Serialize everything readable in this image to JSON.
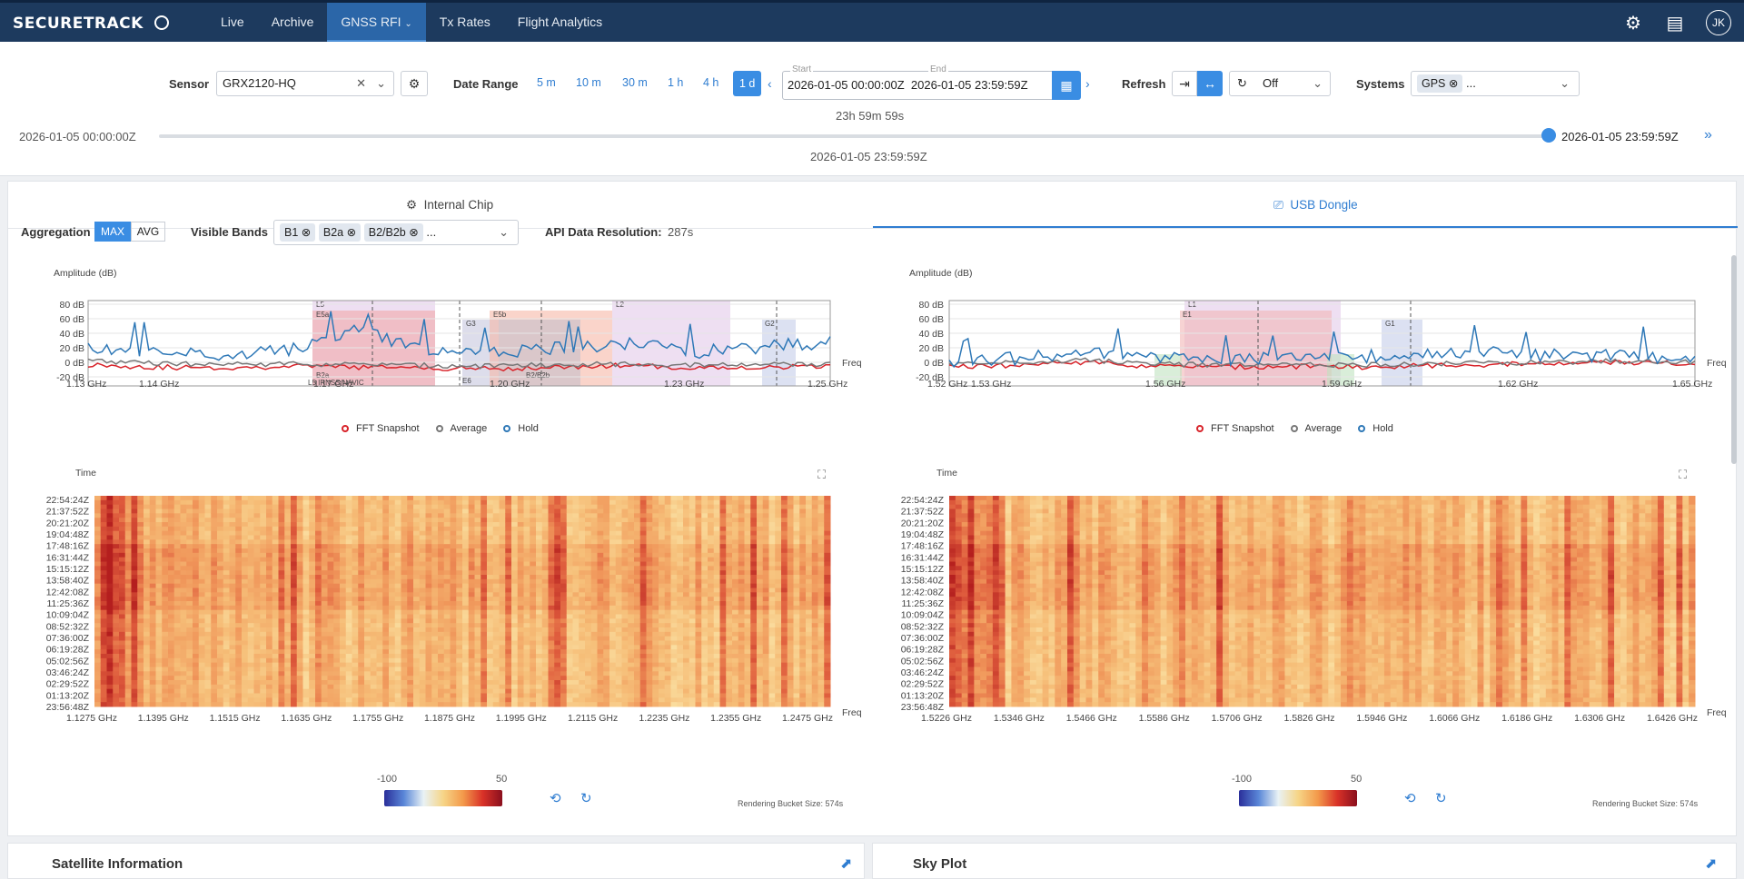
{
  "nav": {
    "logo": "SECURETRACK",
    "tabs": [
      "Live",
      "Archive",
      "GNSS RFI",
      "Tx Rates",
      "Flight Analytics"
    ],
    "avatar": "JK"
  },
  "toolbar": {
    "sensor_label": "Sensor",
    "sensor_value": "GRX2120-HQ",
    "date_range_label": "Date Range",
    "ranges": [
      "5 m",
      "10 m",
      "30 m",
      "1 h",
      "4 h",
      "1 d"
    ],
    "start_caption": "Start",
    "end_caption": "End",
    "start": "2026-01-05 00:00:00Z",
    "end": "2026-01-05 23:59:59Z",
    "duration": "23h 59m 59s",
    "refresh_label": "Refresh",
    "refresh_value": "Off",
    "systems_label": "Systems",
    "systems_chip": "GPS",
    "systems_more": "...",
    "timeline_start": "2026-01-05 00:00:00Z",
    "timeline_end": "2026-01-05 23:59:59Z",
    "timeline_current": "2026-01-05 23:59:59Z"
  },
  "tabs": {
    "internal": "Internal Chip",
    "usb": "USB Dongle"
  },
  "controls": {
    "aggregation_label": "Aggregation",
    "agg_max": "MAX",
    "agg_avg": "AVG",
    "bands_label": "Visible Bands",
    "bands": [
      "B1",
      "B2a",
      "B2/B2b"
    ],
    "bands_more": "...",
    "resolution_label": "API Data Resolution:",
    "resolution_value": "287s"
  },
  "chart_data": [
    {
      "type": "line",
      "title": "",
      "ylabel": "Amplitude (dB)",
      "xlabel": "Freq",
      "ylim": [
        -20,
        80
      ],
      "x_ticks": [
        "1.13 GHz",
        "1.14 GHz",
        "1.17 GHz",
        "1.20 GHz",
        "1.23 GHz",
        "1.25 GHz"
      ],
      "y_ticks": [
        "80 dB",
        "60 dB",
        "40 dB",
        "20 dB",
        "0 dB",
        "-20 dB"
      ],
      "band_labels": [
        "L5",
        "E5a",
        "G3",
        "E5b",
        "L2",
        "G2",
        "B2a",
        "L5 IRNSS/NAVIC",
        "E6",
        "B2/B2b"
      ],
      "series": [
        {
          "name": "FFT Snapshot",
          "values": [
            5,
            2,
            1,
            3,
            2,
            1,
            0,
            2,
            4,
            1,
            2,
            3
          ]
        },
        {
          "name": "Average",
          "values": [
            10,
            6,
            5,
            6,
            5,
            4,
            3,
            5,
            6,
            4,
            5,
            6
          ]
        },
        {
          "name": "Hold",
          "values": [
            25,
            18,
            15,
            22,
            45,
            20,
            18,
            24,
            30,
            20,
            26,
            30
          ]
        }
      ]
    },
    {
      "type": "line",
      "title": "",
      "ylabel": "Amplitude (dB)",
      "xlabel": "Freq",
      "ylim": [
        -20,
        80
      ],
      "x_ticks": [
        "1.52 GHz",
        "1.53 GHz",
        "1.56 GHz",
        "1.59 GHz",
        "1.62 GHz",
        "1.65 GHz"
      ],
      "y_ticks": [
        "80 dB",
        "60 dB",
        "40 dB",
        "20 dB",
        "0 dB",
        "-20 dB"
      ],
      "band_labels": [
        "L1",
        "E1",
        "G1"
      ],
      "series": [
        {
          "name": "FFT Snapshot",
          "values": [
            2,
            4,
            8,
            3,
            2,
            3,
            2,
            4,
            5,
            6,
            8,
            6
          ]
        },
        {
          "name": "Average",
          "values": [
            5,
            7,
            10,
            6,
            4,
            5,
            4,
            6,
            7,
            8,
            9,
            8
          ]
        },
        {
          "name": "Hold",
          "values": [
            10,
            12,
            18,
            12,
            10,
            12,
            14,
            20,
            18,
            16,
            14,
            12
          ]
        }
      ]
    },
    {
      "type": "heatmap",
      "ylabel": "Time",
      "xlabel": "Freq",
      "y_ticks": [
        "22:54:24Z",
        "21:37:52Z",
        "20:21:20Z",
        "19:04:48Z",
        "17:48:16Z",
        "16:31:44Z",
        "15:15:12Z",
        "13:58:40Z",
        "12:42:08Z",
        "11:25:36Z",
        "10:09:04Z",
        "08:52:32Z",
        "07:36:00Z",
        "06:19:28Z",
        "05:02:56Z",
        "03:46:24Z",
        "02:29:52Z",
        "01:13:20Z",
        "23:56:48Z"
      ],
      "x_ticks": [
        "1.1275 GHz",
        "1.1395 GHz",
        "1.1515 GHz",
        "1.1635 GHz",
        "1.1755 GHz",
        "1.1875 GHz",
        "1.1995 GHz",
        "1.2115 GHz",
        "1.2235 GHz",
        "1.2355 GHz",
        "1.2475 GHz"
      ],
      "colorbar": [
        -100,
        50
      ]
    },
    {
      "type": "heatmap",
      "ylabel": "Time",
      "xlabel": "Freq",
      "y_ticks": [
        "22:54:24Z",
        "21:37:52Z",
        "20:21:20Z",
        "19:04:48Z",
        "17:48:16Z",
        "16:31:44Z",
        "15:15:12Z",
        "13:58:40Z",
        "12:42:08Z",
        "11:25:36Z",
        "10:09:04Z",
        "08:52:32Z",
        "07:36:00Z",
        "06:19:28Z",
        "05:02:56Z",
        "03:46:24Z",
        "02:29:52Z",
        "01:13:20Z",
        "23:56:48Z"
      ],
      "x_ticks": [
        "1.5226 GHz",
        "1.5346 GHz",
        "1.5466 GHz",
        "1.5586 GHz",
        "1.5706 GHz",
        "1.5826 GHz",
        "1.5946 GHz",
        "1.6066 GHz",
        "1.6186 GHz",
        "1.6306 GHz",
        "1.6426 GHz"
      ],
      "colorbar": [
        -100,
        50
      ]
    }
  ],
  "legend": [
    "FFT Snapshot",
    "Average",
    "Hold"
  ],
  "colorbar_min": "-100",
  "colorbar_max": "50",
  "bucket_label": "Rendering Bucket Size: 574s",
  "bottom": {
    "left_title": "Satellite Information",
    "right_title": "Sky Plot"
  },
  "colors": {
    "fft": "#d8232a",
    "avg": "#777777",
    "hold": "#2e78b7",
    "accent": "#3a8de3"
  }
}
